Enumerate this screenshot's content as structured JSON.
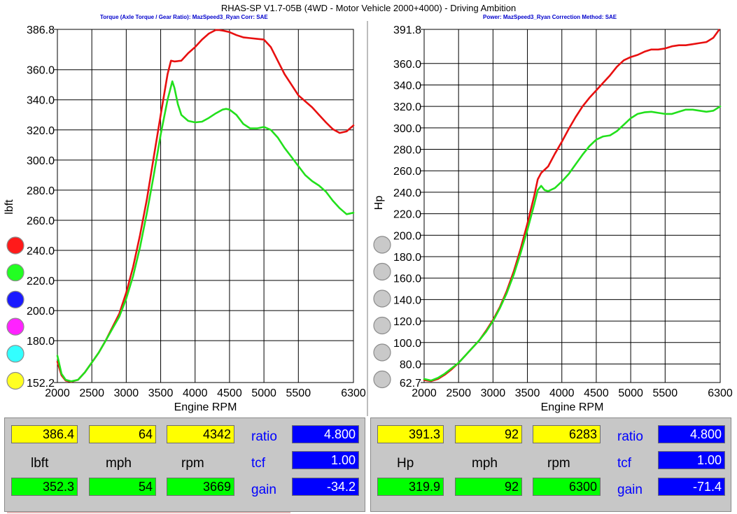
{
  "header": {
    "title": "RHAS-SP V1.7-05B   (4WD - Motor Vehicle 2000+4000) - Driving Ambition",
    "left_subtitle": "Torque (Axle Torque / Gear Ratio): MazSpeed3_Ryan     Corr: SAE",
    "right_subtitle": "Power: MazSpeed3_Ryan     Correction Method: SAE"
  },
  "colors": {
    "red_series": "#e81010",
    "green_series": "#22e01c",
    "grid": "#000000",
    "panel": "#c7c7c7",
    "value_yellow": "#ffff00",
    "value_green": "#00ff00",
    "value_blue": "#0000ff",
    "label_blue": "#0000ff"
  },
  "left_swatches": [
    {
      "name": "red-swatch",
      "color": "#ff1a1a"
    },
    {
      "name": "green-swatch",
      "color": "#22ff22"
    },
    {
      "name": "blue-swatch",
      "color": "#1a1aff"
    },
    {
      "name": "magenta-swatch",
      "color": "#ff22ff"
    },
    {
      "name": "cyan-swatch",
      "color": "#33ffff"
    },
    {
      "name": "yellow-swatch",
      "color": "#ffff22"
    }
  ],
  "right_swatches": [
    {
      "name": "gray-swatch-1",
      "color": "#c9c9c9"
    },
    {
      "name": "gray-swatch-2",
      "color": "#c9c9c9"
    },
    {
      "name": "gray-swatch-3",
      "color": "#c9c9c9"
    },
    {
      "name": "gray-swatch-4",
      "color": "#c9c9c9"
    },
    {
      "name": "gray-swatch-5",
      "color": "#c9c9c9"
    },
    {
      "name": "gray-swatch-6",
      "color": "#c9c9c9"
    }
  ],
  "chart_data": [
    {
      "type": "line",
      "title": "",
      "xlabel": "Engine RPM",
      "ylabel": "lbft",
      "xlim": [
        2000,
        6300
      ],
      "ylim": [
        152.2,
        386.8
      ],
      "x_ticks": [
        2000,
        2500,
        3000,
        3500,
        4000,
        4500,
        5000,
        5500,
        6300
      ],
      "y_ticks": [
        "152.2",
        "180.0",
        "200.0",
        "220.0",
        "240.0",
        "260.0",
        "280.0",
        "300.0",
        "320.0",
        "340.0",
        "360.0",
        "386.8"
      ],
      "y_tick_values": [
        152.2,
        180,
        200,
        220,
        240,
        260,
        280,
        300,
        320,
        340,
        360,
        386.8
      ],
      "grid": true,
      "series": [
        {
          "color": "#e81010",
          "points": [
            [
              2000,
              166
            ],
            [
              2060,
              157
            ],
            [
              2120,
              153.5
            ],
            [
              2200,
              152.7
            ],
            [
              2300,
              154
            ],
            [
              2400,
              159
            ],
            [
              2500,
              165.5
            ],
            [
              2600,
              172
            ],
            [
              2700,
              180
            ],
            [
              2800,
              189
            ],
            [
              2900,
              198
            ],
            [
              3000,
              212
            ],
            [
              3100,
              229
            ],
            [
              3200,
              250
            ],
            [
              3300,
              274
            ],
            [
              3400,
              302
            ],
            [
              3500,
              330
            ],
            [
              3600,
              357
            ],
            [
              3650,
              366
            ],
            [
              3700,
              365.5
            ],
            [
              3800,
              366
            ],
            [
              3900,
              371
            ],
            [
              4000,
              375
            ],
            [
              4100,
              380
            ],
            [
              4200,
              384
            ],
            [
              4300,
              386.4
            ],
            [
              4342,
              386.4
            ],
            [
              4400,
              386
            ],
            [
              4500,
              385
            ],
            [
              4600,
              383
            ],
            [
              4700,
              381.5
            ],
            [
              4800,
              381
            ],
            [
              4900,
              380.5
            ],
            [
              5000,
              380
            ],
            [
              5100,
              375
            ],
            [
              5200,
              366
            ],
            [
              5300,
              357
            ],
            [
              5400,
              350
            ],
            [
              5500,
              343
            ],
            [
              5600,
              339
            ],
            [
              5700,
              335
            ],
            [
              5800,
              330
            ],
            [
              5900,
              325
            ],
            [
              6000,
              320.5
            ],
            [
              6100,
              318
            ],
            [
              6200,
              319
            ],
            [
              6300,
              323
            ]
          ]
        },
        {
          "color": "#22e01c",
          "points": [
            [
              2000,
              170
            ],
            [
              2060,
              158
            ],
            [
              2120,
              154
            ],
            [
              2200,
              153
            ],
            [
              2300,
              154
            ],
            [
              2400,
              159
            ],
            [
              2500,
              165.5
            ],
            [
              2600,
              172
            ],
            [
              2700,
              180
            ],
            [
              2800,
              188
            ],
            [
              2900,
              196
            ],
            [
              3000,
              208
            ],
            [
              3100,
              223
            ],
            [
              3200,
              242
            ],
            [
              3300,
              265
            ],
            [
              3400,
              290
            ],
            [
              3500,
              317
            ],
            [
              3600,
              340
            ],
            [
              3669,
              352.3
            ],
            [
              3700,
              348
            ],
            [
              3750,
              337
            ],
            [
              3800,
              330
            ],
            [
              3900,
              326
            ],
            [
              4000,
              325
            ],
            [
              4100,
              325.5
            ],
            [
              4200,
              328
            ],
            [
              4300,
              331
            ],
            [
              4400,
              333.5
            ],
            [
              4450,
              334
            ],
            [
              4500,
              333.5
            ],
            [
              4600,
              330
            ],
            [
              4700,
              324
            ],
            [
              4800,
              321
            ],
            [
              4900,
              321
            ],
            [
              5000,
              322
            ],
            [
              5100,
              320
            ],
            [
              5200,
              315
            ],
            [
              5300,
              308
            ],
            [
              5400,
              302
            ],
            [
              5500,
              296
            ],
            [
              5600,
              290
            ],
            [
              5700,
              286
            ],
            [
              5800,
              283
            ],
            [
              5900,
              279
            ],
            [
              6000,
              273
            ],
            [
              6100,
              268
            ],
            [
              6200,
              264
            ],
            [
              6300,
              265
            ]
          ]
        }
      ]
    },
    {
      "type": "line",
      "title": "",
      "xlabel": "Engine RPM",
      "ylabel": "Hp",
      "xlim": [
        2000,
        6300
      ],
      "ylim": [
        62.7,
        391.8
      ],
      "x_ticks": [
        2000,
        2500,
        3000,
        3500,
        4000,
        4500,
        5000,
        5500,
        6300
      ],
      "y_ticks": [
        "62.7",
        "80.0",
        "100.0",
        "120.0",
        "140.0",
        "160.0",
        "180.0",
        "200.0",
        "220.0",
        "240.0",
        "260.0",
        "280.0",
        "300.0",
        "320.0",
        "340.0",
        "360.0",
        "391.8"
      ],
      "y_tick_values": [
        62.7,
        80,
        100,
        120,
        140,
        160,
        180,
        200,
        220,
        240,
        260,
        280,
        300,
        320,
        340,
        360,
        391.8
      ],
      "grid": true,
      "series": [
        {
          "color": "#e81010",
          "points": [
            [
              2000,
              65
            ],
            [
              2100,
              64
            ],
            [
              2200,
              66
            ],
            [
              2300,
              70
            ],
            [
              2400,
              75
            ],
            [
              2500,
              81
            ],
            [
              2600,
              88
            ],
            [
              2700,
              95
            ],
            [
              2800,
              102
            ],
            [
              2900,
              111
            ],
            [
              3000,
              121
            ],
            [
              3100,
              133
            ],
            [
              3200,
              148
            ],
            [
              3300,
              166
            ],
            [
              3400,
              187
            ],
            [
              3500,
              211
            ],
            [
              3600,
              237
            ],
            [
              3650,
              252
            ],
            [
              3700,
              258
            ],
            [
              3800,
              264
            ],
            [
              3900,
              276
            ],
            [
              4000,
              287
            ],
            [
              4100,
              299
            ],
            [
              4200,
              310
            ],
            [
              4300,
              320
            ],
            [
              4400,
              328
            ],
            [
              4500,
              335
            ],
            [
              4600,
              342
            ],
            [
              4700,
              349
            ],
            [
              4800,
              357
            ],
            [
              4900,
              363
            ],
            [
              5000,
              366
            ],
            [
              5100,
              368
            ],
            [
              5200,
              371
            ],
            [
              5300,
              373
            ],
            [
              5400,
              373
            ],
            [
              5500,
              374
            ],
            [
              5600,
              376
            ],
            [
              5700,
              377
            ],
            [
              5800,
              377
            ],
            [
              5900,
              378
            ],
            [
              6000,
              379
            ],
            [
              6100,
              380
            ],
            [
              6200,
              384
            ],
            [
              6283,
              391.3
            ]
          ]
        },
        {
          "color": "#22e01c",
          "points": [
            [
              2000,
              66
            ],
            [
              2100,
              64.5
            ],
            [
              2200,
              67
            ],
            [
              2300,
              71
            ],
            [
              2400,
              76
            ],
            [
              2500,
              81
            ],
            [
              2600,
              88
            ],
            [
              2700,
              95
            ],
            [
              2800,
              102
            ],
            [
              2900,
              110
            ],
            [
              3000,
              120
            ],
            [
              3100,
              132
            ],
            [
              3200,
              146
            ],
            [
              3300,
              163
            ],
            [
              3400,
              183
            ],
            [
              3500,
              205
            ],
            [
              3600,
              229
            ],
            [
              3650,
              242
            ],
            [
              3700,
              246
            ],
            [
              3750,
              242
            ],
            [
              3800,
              241
            ],
            [
              3900,
              244
            ],
            [
              4000,
              250
            ],
            [
              4100,
              257
            ],
            [
              4200,
              266
            ],
            [
              4300,
              275
            ],
            [
              4400,
              283
            ],
            [
              4500,
              289
            ],
            [
              4600,
              292
            ],
            [
              4700,
              293
            ],
            [
              4800,
              297
            ],
            [
              4900,
              303
            ],
            [
              5000,
              309
            ],
            [
              5100,
              313
            ],
            [
              5200,
              314.5
            ],
            [
              5300,
              315
            ],
            [
              5400,
              314
            ],
            [
              5500,
              313
            ],
            [
              5600,
              313
            ],
            [
              5700,
              315
            ],
            [
              5800,
              317
            ],
            [
              5900,
              317
            ],
            [
              6000,
              316
            ],
            [
              6100,
              315
            ],
            [
              6200,
              316
            ],
            [
              6300,
              320
            ]
          ]
        }
      ]
    }
  ],
  "left_panel": {
    "row1": [
      "386.4",
      "64",
      "4342"
    ],
    "labels": [
      "lbft",
      "mph",
      "rpm"
    ],
    "row3": [
      "352.3",
      "54",
      "3669"
    ],
    "side_labels": [
      "ratio",
      "tcf",
      "gain"
    ],
    "side_values": [
      "4.800",
      "1.00",
      "-34.2"
    ]
  },
  "right_panel": {
    "row1": [
      "391.3",
      "92",
      "6283"
    ],
    "labels": [
      "Hp",
      "mph",
      "rpm"
    ],
    "row3": [
      "319.9",
      "92",
      "6300"
    ],
    "side_labels": [
      "ratio",
      "tcf",
      "gain"
    ],
    "side_values": [
      "4.800",
      "1.00",
      "-71.4"
    ]
  }
}
